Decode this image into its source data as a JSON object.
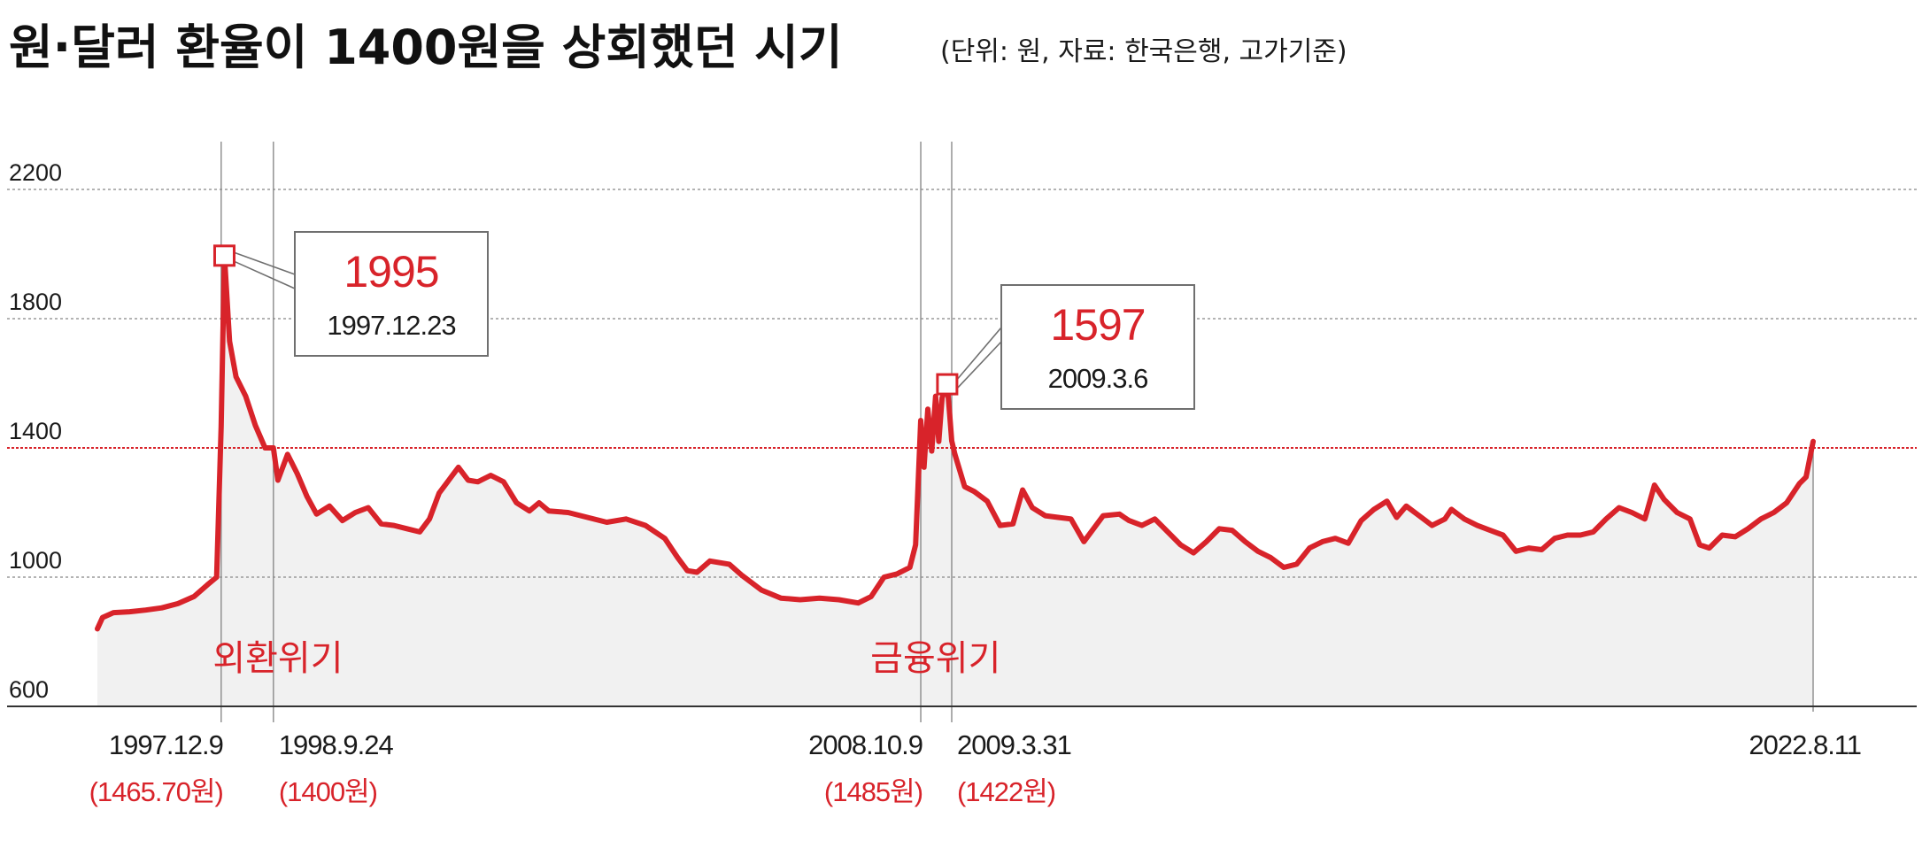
{
  "chart_data": {
    "type": "area",
    "title": "원·달러 환율이 1400원을 상회했던 시기",
    "subtitle": "(단위: 원, 자료: 한국은행, 고가기준)",
    "ylim": [
      600,
      2200
    ],
    "yticks": [
      "2200",
      "1800",
      "1400",
      "1000",
      "600"
    ],
    "reference_line": 1400,
    "grid": true,
    "colors": {
      "line": "#d8232a",
      "fill": "#f1f1f1",
      "grid": "#9a9a9a",
      "reference": "#d8232a",
      "text": "#1a1a1a",
      "highlight": "#d8232a"
    },
    "series": [
      {
        "values": [
          [
            1996.0,
            840
          ],
          [
            1996.08,
            875
          ],
          [
            1996.25,
            890
          ],
          [
            1996.5,
            893
          ],
          [
            1996.75,
            898
          ],
          [
            1997.0,
            905
          ],
          [
            1997.25,
            918
          ],
          [
            1997.5,
            940
          ],
          [
            1997.7,
            975
          ],
          [
            1997.85,
            1000
          ],
          [
            1997.92,
            1465.7
          ],
          [
            1997.97,
            1995
          ],
          [
            1998.05,
            1730
          ],
          [
            1998.15,
            1620
          ],
          [
            1998.3,
            1560
          ],
          [
            1998.45,
            1470
          ],
          [
            1998.6,
            1400
          ],
          [
            1998.73,
            1400
          ],
          [
            1998.8,
            1300
          ],
          [
            1998.95,
            1380
          ],
          [
            1999.1,
            1320
          ],
          [
            1999.25,
            1250
          ],
          [
            1999.4,
            1195
          ],
          [
            1999.6,
            1220
          ],
          [
            1999.8,
            1175
          ],
          [
            2000.0,
            1200
          ],
          [
            2000.2,
            1215
          ],
          [
            2000.4,
            1165
          ],
          [
            2000.6,
            1160
          ],
          [
            2000.8,
            1150
          ],
          [
            2001.0,
            1140
          ],
          [
            2001.15,
            1180
          ],
          [
            2001.3,
            1260
          ],
          [
            2001.45,
            1300
          ],
          [
            2001.6,
            1340
          ],
          [
            2001.75,
            1300
          ],
          [
            2001.9,
            1295
          ],
          [
            2002.1,
            1315
          ],
          [
            2002.3,
            1295
          ],
          [
            2002.5,
            1230
          ],
          [
            2002.7,
            1205
          ],
          [
            2002.85,
            1230
          ],
          [
            2003.0,
            1205
          ],
          [
            2003.3,
            1200
          ],
          [
            2003.6,
            1185
          ],
          [
            2003.9,
            1170
          ],
          [
            2004.2,
            1180
          ],
          [
            2004.5,
            1160
          ],
          [
            2004.8,
            1120
          ],
          [
            2005.0,
            1060
          ],
          [
            2005.15,
            1020
          ],
          [
            2005.3,
            1015
          ],
          [
            2005.5,
            1050
          ],
          [
            2005.8,
            1040
          ],
          [
            2006.0,
            1005
          ],
          [
            2006.3,
            960
          ],
          [
            2006.6,
            935
          ],
          [
            2006.9,
            930
          ],
          [
            2007.2,
            935
          ],
          [
            2007.5,
            930
          ],
          [
            2007.8,
            920
          ],
          [
            2008.0,
            940
          ],
          [
            2008.2,
            1000
          ],
          [
            2008.4,
            1010
          ],
          [
            2008.6,
            1030
          ],
          [
            2008.69,
            1100
          ],
          [
            2008.77,
            1485
          ],
          [
            2008.82,
            1340
          ],
          [
            2008.88,
            1520
          ],
          [
            2008.94,
            1390
          ],
          [
            2009.0,
            1560
          ],
          [
            2009.05,
            1420
          ],
          [
            2009.1,
            1555
          ],
          [
            2009.18,
            1597
          ],
          [
            2009.22,
            1500
          ],
          [
            2009.25,
            1422
          ],
          [
            2009.3,
            1380
          ],
          [
            2009.45,
            1280
          ],
          [
            2009.6,
            1265
          ],
          [
            2009.8,
            1235
          ],
          [
            2010.0,
            1160
          ],
          [
            2010.2,
            1165
          ],
          [
            2010.35,
            1270
          ],
          [
            2010.5,
            1215
          ],
          [
            2010.7,
            1190
          ],
          [
            2010.9,
            1185
          ],
          [
            2011.1,
            1180
          ],
          [
            2011.3,
            1110
          ],
          [
            2011.6,
            1190
          ],
          [
            2011.85,
            1195
          ],
          [
            2012.0,
            1175
          ],
          [
            2012.2,
            1160
          ],
          [
            2012.4,
            1180
          ],
          [
            2012.6,
            1140
          ],
          [
            2012.8,
            1100
          ],
          [
            2013.0,
            1075
          ],
          [
            2013.2,
            1110
          ],
          [
            2013.4,
            1150
          ],
          [
            2013.6,
            1145
          ],
          [
            2013.8,
            1110
          ],
          [
            2014.0,
            1080
          ],
          [
            2014.2,
            1060
          ],
          [
            2014.4,
            1030
          ],
          [
            2014.6,
            1040
          ],
          [
            2014.8,
            1090
          ],
          [
            2015.0,
            1110
          ],
          [
            2015.2,
            1120
          ],
          [
            2015.4,
            1105
          ],
          [
            2015.6,
            1175
          ],
          [
            2015.8,
            1210
          ],
          [
            2016.0,
            1235
          ],
          [
            2016.15,
            1185
          ],
          [
            2016.3,
            1220
          ],
          [
            2016.5,
            1190
          ],
          [
            2016.7,
            1160
          ],
          [
            2016.9,
            1180
          ],
          [
            2017.0,
            1210
          ],
          [
            2017.2,
            1180
          ],
          [
            2017.4,
            1160
          ],
          [
            2017.6,
            1145
          ],
          [
            2017.8,
            1130
          ],
          [
            2018.0,
            1080
          ],
          [
            2018.2,
            1090
          ],
          [
            2018.4,
            1085
          ],
          [
            2018.6,
            1120
          ],
          [
            2018.8,
            1130
          ],
          [
            2019.0,
            1130
          ],
          [
            2019.2,
            1140
          ],
          [
            2019.4,
            1180
          ],
          [
            2019.6,
            1215
          ],
          [
            2019.8,
            1200
          ],
          [
            2020.0,
            1180
          ],
          [
            2020.15,
            1285
          ],
          [
            2020.3,
            1240
          ],
          [
            2020.5,
            1200
          ],
          [
            2020.7,
            1180
          ],
          [
            2020.85,
            1100
          ],
          [
            2021.0,
            1090
          ],
          [
            2021.2,
            1130
          ],
          [
            2021.4,
            1125
          ],
          [
            2021.6,
            1150
          ],
          [
            2021.8,
            1180
          ],
          [
            2022.0,
            1200
          ],
          [
            2022.2,
            1230
          ],
          [
            2022.4,
            1290
          ],
          [
            2022.5,
            1310
          ],
          [
            2022.61,
            1420
          ]
        ]
      }
    ],
    "peaks": [
      {
        "value": "1995",
        "date": "1997.12.23",
        "x": 1997.97,
        "y": 1995
      },
      {
        "value": "1597",
        "date": "2009.3.6",
        "x": 2009.18,
        "y": 1597
      }
    ],
    "event_lines": [
      {
        "x": 1997.92,
        "date": "1997.12.9",
        "value_label": "(1465.70원)"
      },
      {
        "x": 1998.73,
        "date": "1998.9.24",
        "value_label": "(1400원)"
      },
      {
        "x": 2008.77,
        "date": "2008.10.9",
        "value_label": "(1485원)"
      },
      {
        "x": 2009.25,
        "date": "2009.3.31",
        "value_label": "(1422원)"
      },
      {
        "x": 2022.61,
        "date": "2022.8.11",
        "value_label": ""
      }
    ],
    "annotations": [
      {
        "text": "외환위기",
        "x": 1998.8
      },
      {
        "text": "금융위기",
        "x": 2009.0
      }
    ]
  }
}
